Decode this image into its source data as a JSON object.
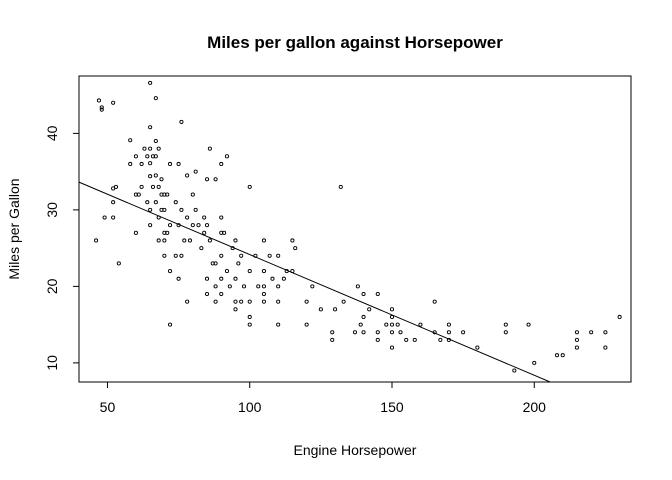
{
  "chart_data": {
    "type": "scatter",
    "title": "Miles per gallon against Horsepower",
    "xlabel": "Engine Horsepower",
    "ylabel": "Miles per Gallon",
    "xlim": [
      40,
      234
    ],
    "ylim": [
      7.5,
      47.5
    ],
    "xticks": [
      "50",
      "100",
      "150",
      "200"
    ],
    "yticks": [
      "10",
      "20",
      "30",
      "40"
    ],
    "grid": false,
    "legend": "none",
    "regression_line": {
      "intercept": 39.94,
      "slope": -0.1578
    },
    "points": [
      [
        46,
        26
      ],
      [
        47,
        44.3
      ],
      [
        48,
        43.4
      ],
      [
        48,
        43.1
      ],
      [
        49,
        29
      ],
      [
        52,
        29
      ],
      [
        52,
        31
      ],
      [
        52,
        32.8
      ],
      [
        52,
        44
      ],
      [
        53,
        33
      ],
      [
        54,
        23
      ],
      [
        58,
        39.1
      ],
      [
        58,
        36
      ],
      [
        60,
        37
      ],
      [
        60,
        32
      ],
      [
        60,
        27
      ],
      [
        61,
        32
      ],
      [
        62,
        36
      ],
      [
        62,
        33
      ],
      [
        63,
        38
      ],
      [
        64,
        37
      ],
      [
        64,
        31
      ],
      [
        65,
        46.6
      ],
      [
        65,
        40.8
      ],
      [
        65,
        38
      ],
      [
        65,
        34.4
      ],
      [
        65,
        36.1
      ],
      [
        65,
        28
      ],
      [
        65,
        30
      ],
      [
        66,
        37
      ],
      [
        66,
        33
      ],
      [
        67,
        44.6
      ],
      [
        67,
        39
      ],
      [
        67,
        37
      ],
      [
        67,
        34.5
      ],
      [
        67,
        31
      ],
      [
        68,
        38
      ],
      [
        68,
        33
      ],
      [
        68,
        29
      ],
      [
        68,
        26
      ],
      [
        69,
        32
      ],
      [
        69,
        34
      ],
      [
        69,
        30
      ],
      [
        70,
        32
      ],
      [
        70,
        30
      ],
      [
        70,
        27
      ],
      [
        70,
        26
      ],
      [
        70,
        24
      ],
      [
        71,
        27
      ],
      [
        71,
        32
      ],
      [
        72,
        36
      ],
      [
        72,
        28
      ],
      [
        72,
        15
      ],
      [
        72,
        22
      ],
      [
        74,
        31
      ],
      [
        74,
        24
      ],
      [
        75,
        36
      ],
      [
        75,
        28
      ],
      [
        75,
        21
      ],
      [
        76,
        24
      ],
      [
        76,
        41.5
      ],
      [
        76,
        30
      ],
      [
        77,
        26
      ],
      [
        78,
        34.5
      ],
      [
        78,
        29
      ],
      [
        78,
        18
      ],
      [
        79,
        26
      ],
      [
        80,
        28
      ],
      [
        80,
        32
      ],
      [
        81,
        35
      ],
      [
        81,
        30
      ],
      [
        82,
        28
      ],
      [
        83,
        25
      ],
      [
        84,
        27
      ],
      [
        84,
        29
      ],
      [
        85,
        34
      ],
      [
        85,
        28
      ],
      [
        85,
        21
      ],
      [
        85,
        19
      ],
      [
        86,
        38
      ],
      [
        86,
        26
      ],
      [
        87,
        23
      ],
      [
        88,
        34
      ],
      [
        88,
        23
      ],
      [
        88,
        20
      ],
      [
        88,
        18
      ],
      [
        90,
        36
      ],
      [
        90,
        29
      ],
      [
        90,
        27
      ],
      [
        90,
        24
      ],
      [
        90,
        21
      ],
      [
        90,
        19
      ],
      [
        91,
        27
      ],
      [
        92,
        37
      ],
      [
        92,
        22
      ],
      [
        93,
        20
      ],
      [
        94,
        25
      ],
      [
        95,
        26
      ],
      [
        95,
        21
      ],
      [
        95,
        18
      ],
      [
        95,
        17
      ],
      [
        96,
        23
      ],
      [
        97,
        24
      ],
      [
        97,
        18
      ],
      [
        98,
        20
      ],
      [
        100,
        33
      ],
      [
        100,
        22
      ],
      [
        100,
        18
      ],
      [
        100,
        16
      ],
      [
        100,
        15
      ],
      [
        102,
        24
      ],
      [
        103,
        20
      ],
      [
        105,
        26
      ],
      [
        105,
        22
      ],
      [
        105,
        20
      ],
      [
        105,
        19
      ],
      [
        105,
        18
      ],
      [
        107,
        24
      ],
      [
        108,
        21
      ],
      [
        110,
        24
      ],
      [
        110,
        20
      ],
      [
        110,
        18
      ],
      [
        110,
        15
      ],
      [
        112,
        21
      ],
      [
        113,
        22
      ],
      [
        115,
        26
      ],
      [
        115,
        22
      ],
      [
        116,
        25
      ],
      [
        120,
        18
      ],
      [
        120,
        15
      ],
      [
        122,
        20
      ],
      [
        125,
        17
      ],
      [
        129,
        14
      ],
      [
        129,
        13
      ],
      [
        130,
        17
      ],
      [
        132,
        33
      ],
      [
        133,
        18
      ],
      [
        137,
        14
      ],
      [
        138,
        20
      ],
      [
        139,
        15
      ],
      [
        140,
        19
      ],
      [
        140,
        16
      ],
      [
        140,
        14
      ],
      [
        142,
        17
      ],
      [
        145,
        19
      ],
      [
        145,
        14
      ],
      [
        145,
        13
      ],
      [
        148,
        15
      ],
      [
        150,
        17
      ],
      [
        150,
        16
      ],
      [
        150,
        15
      ],
      [
        150,
        14
      ],
      [
        150,
        12
      ],
      [
        152,
        15
      ],
      [
        153,
        14
      ],
      [
        155,
        13
      ],
      [
        158,
        13
      ],
      [
        160,
        15
      ],
      [
        165,
        18
      ],
      [
        165,
        14
      ],
      [
        167,
        13
      ],
      [
        170,
        15
      ],
      [
        170,
        14
      ],
      [
        170,
        13
      ],
      [
        175,
        14
      ],
      [
        180,
        12
      ],
      [
        190,
        15
      ],
      [
        190,
        14
      ],
      [
        193,
        9
      ],
      [
        198,
        15
      ],
      [
        200,
        10
      ],
      [
        208,
        11
      ],
      [
        210,
        11
      ],
      [
        215,
        12
      ],
      [
        215,
        13
      ],
      [
        215,
        14
      ],
      [
        220,
        14
      ],
      [
        225,
        14
      ],
      [
        225,
        12
      ],
      [
        230,
        16
      ]
    ]
  }
}
